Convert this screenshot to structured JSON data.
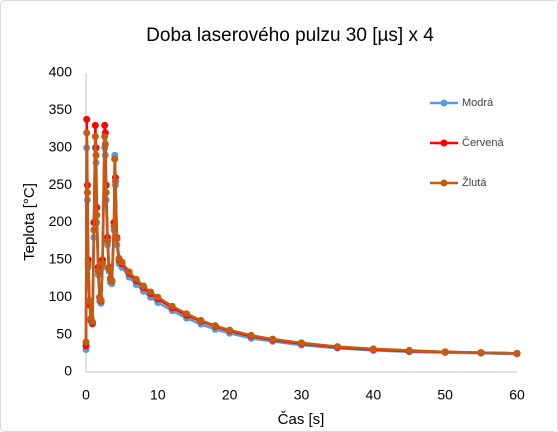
{
  "chart_data": {
    "type": "scatter",
    "title": "Doba laserového pulzu 30 [µs] x 4",
    "xlabel": "Čas [s]",
    "ylabel": "Teplota [°C]",
    "x": [
      0,
      0.1,
      0.2,
      0.3,
      0.5,
      0.7,
      0.9,
      1.1,
      1.3,
      1.4,
      1.5,
      1.7,
      1.9,
      2.1,
      2.3,
      2.6,
      2.7,
      2.8,
      3.0,
      3.2,
      3.4,
      3.6,
      3.9,
      4.0,
      4.1,
      4.3,
      4.6,
      5,
      6,
      7,
      8,
      9,
      10,
      12,
      14,
      16,
      18,
      20,
      23,
      26,
      30,
      35,
      40,
      45,
      50,
      55,
      60
    ],
    "series": [
      {
        "name": "Modrá",
        "color": "#5b9bd5",
        "values": [
          30,
          300,
          230,
          140,
          90,
          68,
          64,
          180,
          300,
          280,
          200,
          130,
          95,
          92,
          140,
          300,
          290,
          230,
          170,
          135,
          120,
          118,
          190,
          290,
          250,
          170,
          145,
          140,
          127,
          117,
          108,
          100,
          93,
          82,
          72,
          64,
          57,
          52,
          45,
          41,
          36,
          32,
          29,
          27,
          26,
          25,
          24
        ]
      },
      {
        "name": "Červená",
        "color": "#ff0000",
        "values": [
          35,
          338,
          250,
          150,
          90,
          70,
          65,
          200,
          330,
          300,
          220,
          140,
          100,
          95,
          150,
          330,
          320,
          250,
          180,
          140,
          125,
          122,
          200,
          285,
          260,
          180,
          150,
          145,
          132,
          122,
          113,
          105,
          98,
          86,
          76,
          68,
          61,
          55,
          48,
          43,
          38,
          33,
          30,
          28,
          27,
          26,
          25
        ]
      },
      {
        "name": "Žlutá",
        "color": "#c55a11",
        "values": [
          40,
          320,
          240,
          145,
          95,
          72,
          67,
          190,
          315,
          290,
          210,
          135,
          100,
          96,
          145,
          315,
          305,
          240,
          175,
          138,
          124,
          121,
          195,
          285,
          255,
          178,
          152,
          147,
          134,
          124,
          115,
          107,
          100,
          88,
          78,
          69,
          62,
          56,
          49,
          44,
          39,
          34,
          31,
          29,
          27,
          26,
          25
        ]
      }
    ],
    "xlim": [
      0,
      60
    ],
    "xticks": [
      0,
      10,
      20,
      30,
      40,
      50,
      60
    ],
    "ylim": [
      0,
      400
    ],
    "yticks": [
      0,
      50,
      100,
      150,
      200,
      250,
      300,
      350,
      400
    ],
    "grid": false,
    "legend": "right"
  }
}
